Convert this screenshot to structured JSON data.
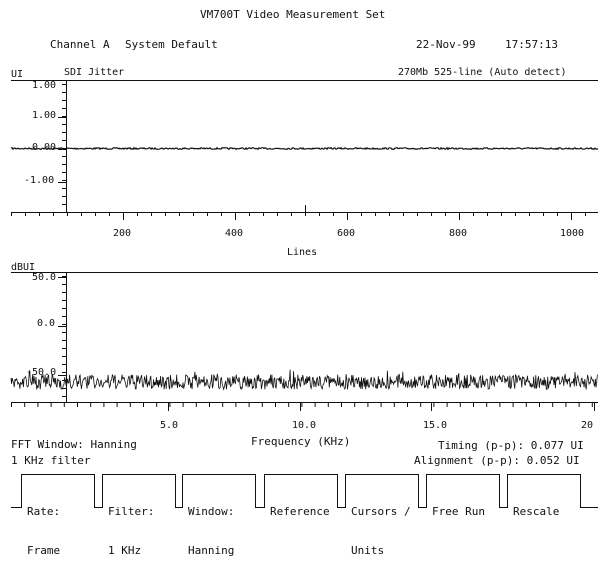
{
  "header": {
    "title": "VM700T Video Measurement Set",
    "channel": "Channel A",
    "system": "System Default",
    "date": "22-Nov-99",
    "time": "17:57:13"
  },
  "top_plot": {
    "unit": "UI",
    "name": "SDI Jitter",
    "format": "270Mb 525-line (Auto detect)",
    "y_ticks": [
      "1.00",
      "1.00",
      "0.00",
      "-1.00"
    ],
    "x_ticks": [
      "200",
      "400",
      "600",
      "800",
      "1000"
    ],
    "x_label": "Lines"
  },
  "bottom_plot": {
    "unit": "dBUI",
    "y_ticks": [
      "50.0",
      "0.0",
      "-50.0"
    ],
    "x_ticks": [
      "5.0",
      "10.0",
      "15.0",
      "20"
    ],
    "x_label": "Frequency (KHz)"
  },
  "status": {
    "fft_window": "FFT Window: Hanning",
    "filter": "1 KHz filter",
    "timing": "Timing (p-p): 0.077 UI",
    "alignment": "Alignment (p-p): 0.052 UI"
  },
  "softkeys": [
    {
      "line1": "Rate:",
      "line2": "Frame"
    },
    {
      "line1": "Filter:",
      "line2": "1 KHz"
    },
    {
      "line1": "Window:",
      "line2": "Hanning"
    },
    {
      "line1": "Reference",
      "line2": ""
    },
    {
      "line1": "Cursors /",
      "line2": "Units"
    },
    {
      "line1": "Free Run",
      "line2": ""
    },
    {
      "line1": "Rescale",
      "line2": ""
    }
  ],
  "colors": {
    "ink": "#111111",
    "background": "#ffffff"
  }
}
